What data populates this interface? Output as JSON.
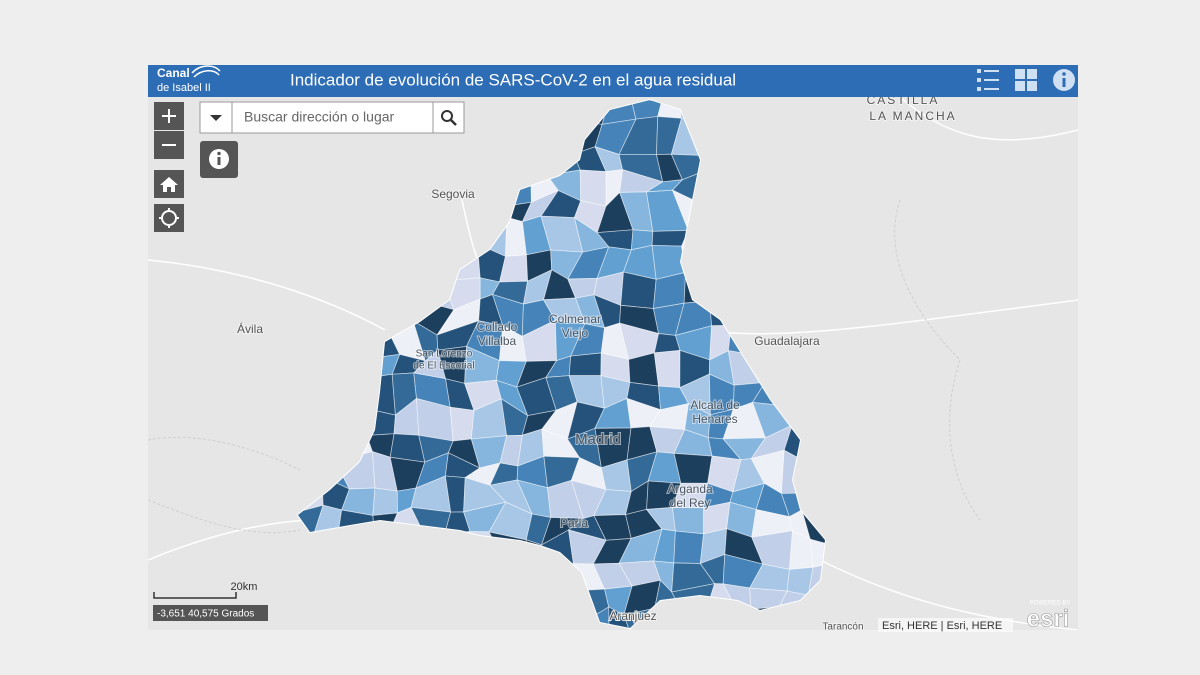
{
  "header": {
    "logo_line1": "Canal",
    "logo_line2": "de Isabel II",
    "title": "Indicador de evolución de SARS-CoV-2 en el agua residual"
  },
  "search": {
    "placeholder": "Buscar dirección o lugar"
  },
  "map": {
    "labels": {
      "castilla": "CASTILLA",
      "la_mancha": "LA MANCHA",
      "segovia": "Segovia",
      "avila": "Ávila",
      "guadalajara": "Guadalajara",
      "madrid": "Madrid",
      "colmenar_1": "Colmenar",
      "colmenar_2": "Viejo",
      "collado_1": "Collado",
      "collado_2": "Villalba",
      "escorial_1": "San Lorenzo",
      "escorial_2": "de El Escorial",
      "alcala_1": "Alcalá de",
      "alcala_2": "Henares",
      "arganda_1": "Arganda",
      "arganda_2": "del Rey",
      "parla": "Parla",
      "aranjuez": "Aranjuez",
      "tarancon": "Tarancón"
    }
  },
  "footer": {
    "scale": "20km",
    "coordinates": "-3,651 40,575 Grados",
    "attribution": "Esri, HERE | Esri, HERE",
    "powered_by": "POWERED BY",
    "esri": "esri"
  }
}
